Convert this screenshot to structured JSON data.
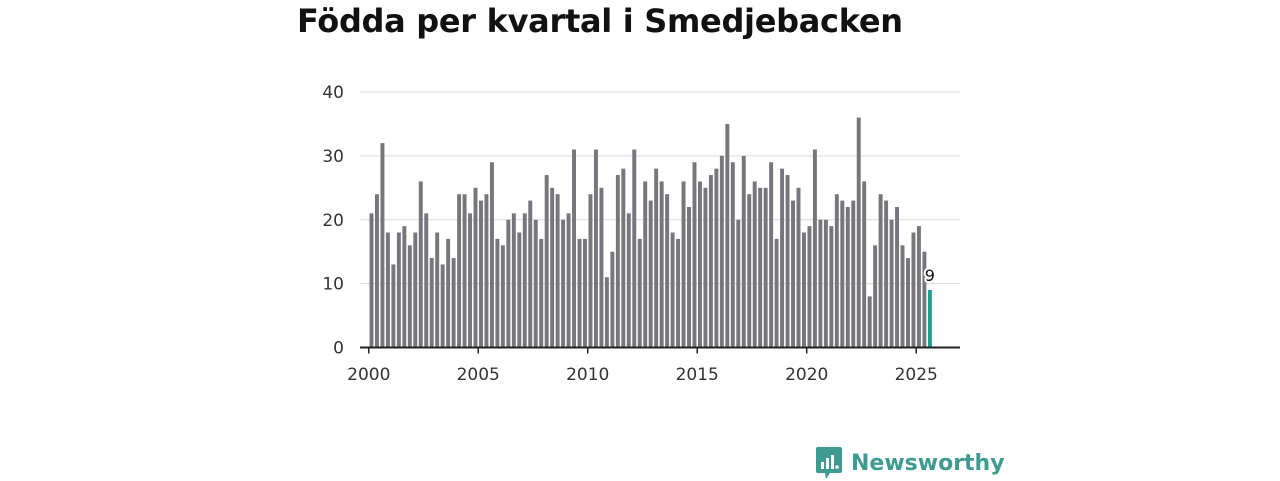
{
  "title": "Födda per kvartal i Smedjebacken",
  "brand": {
    "name": "Newsworthy",
    "color": "#3f9a92",
    "icon": "newsworthy-logo-icon"
  },
  "chart_data": {
    "type": "bar",
    "title": "Födda per kvartal i Smedjebacken",
    "xlabel": "",
    "ylabel": "",
    "ylim": [
      0,
      40
    ],
    "xlim": [
      1999.6,
      2027.0
    ],
    "yticks": [
      "0",
      "10",
      "20",
      "30",
      "40"
    ],
    "xticks": [
      "2000",
      "2005",
      "2010",
      "2015",
      "2020",
      "2025"
    ],
    "grid": true,
    "start_year": 2000,
    "bar_color": "#76767c",
    "highlight_color": "#1d9e8f",
    "highlight_label": "9",
    "values": [
      21,
      24,
      32,
      18,
      13,
      18,
      19,
      16,
      18,
      26,
      21,
      14,
      18,
      13,
      17,
      14,
      24,
      24,
      21,
      25,
      23,
      24,
      29,
      17,
      16,
      20,
      21,
      18,
      21,
      23,
      20,
      17,
      27,
      25,
      24,
      20,
      21,
      31,
      17,
      17,
      24,
      31,
      25,
      11,
      15,
      27,
      28,
      21,
      31,
      17,
      26,
      23,
      28,
      26,
      24,
      18,
      17,
      26,
      22,
      29,
      26,
      25,
      27,
      28,
      30,
      35,
      29,
      20,
      30,
      24,
      26,
      25,
      25,
      29,
      17,
      28,
      27,
      23,
      25,
      18,
      19,
      31,
      20,
      20,
      19,
      24,
      23,
      22,
      23,
      36,
      26,
      8,
      16,
      24,
      23,
      20,
      22,
      16,
      14,
      18,
      19,
      15,
      9
    ]
  }
}
